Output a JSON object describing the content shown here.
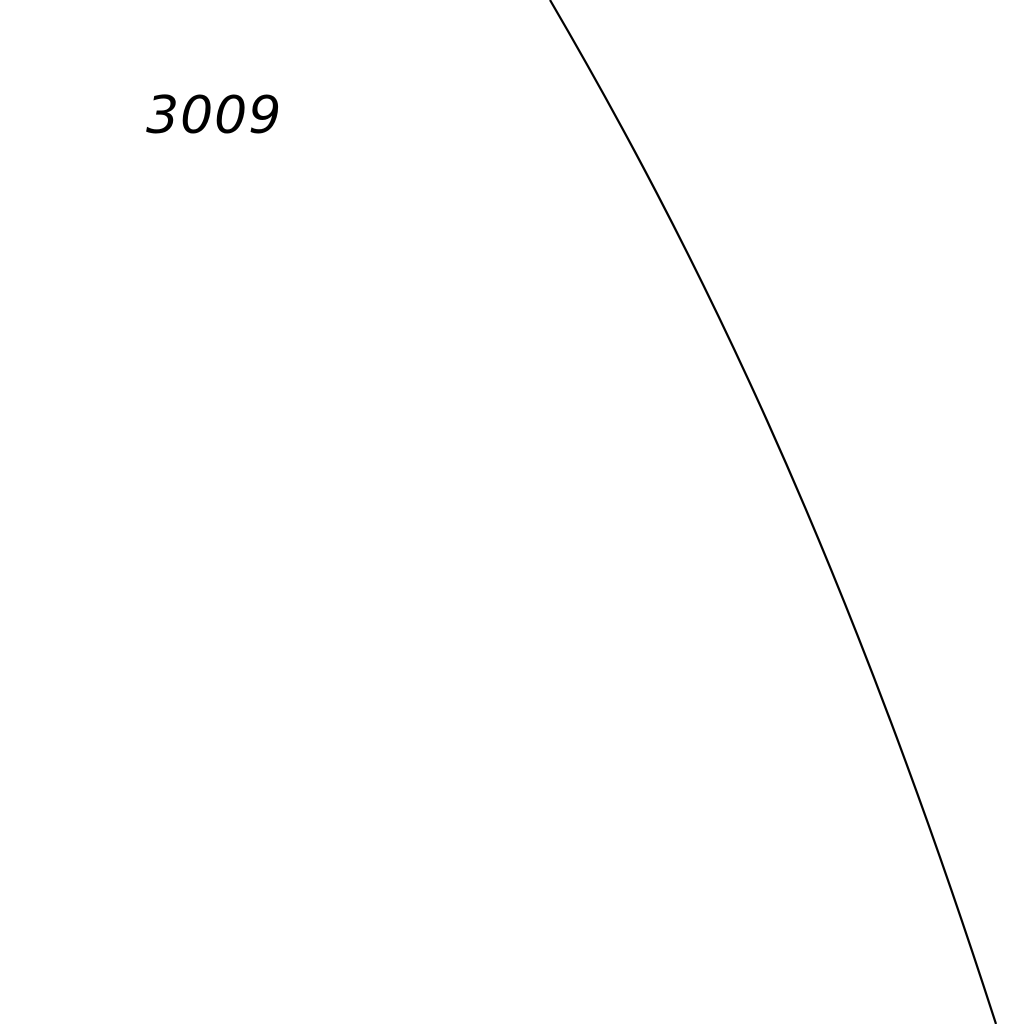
{
  "label": {
    "text": "3009",
    "color": "#000000"
  },
  "boundary_line": {
    "color": "#000000"
  }
}
